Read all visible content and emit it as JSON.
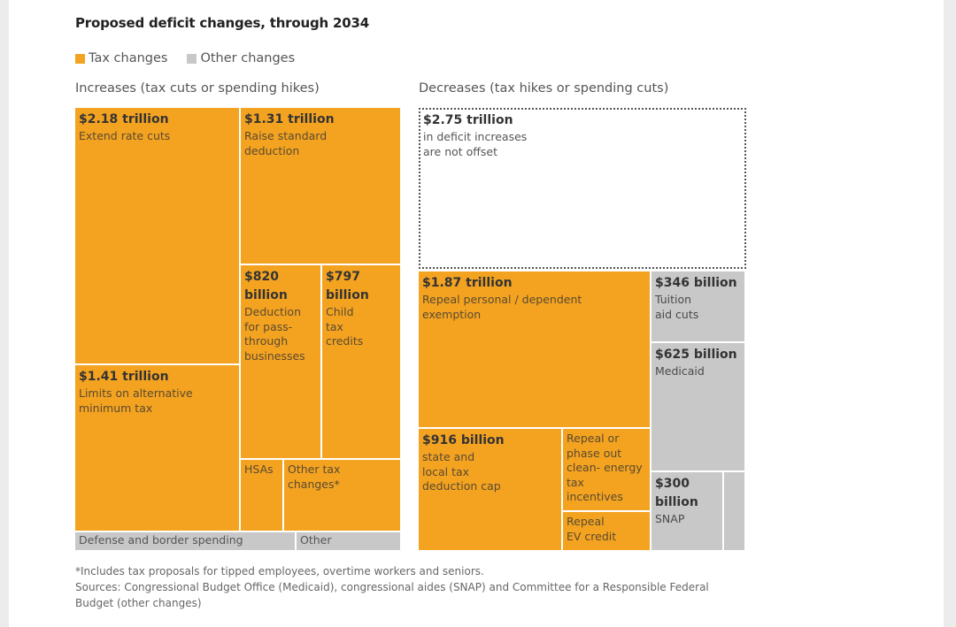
{
  "title": "Proposed deficit changes, through 2034",
  "legend": [
    {
      "label": "Tax changes",
      "color": "#f4a321"
    },
    {
      "label": "Other changes",
      "color": "#c8c8c8"
    }
  ],
  "sections": {
    "increases": "Increases (tax cuts or spending hikes)",
    "decreases": "Decreases (tax hikes or spending cuts)"
  },
  "chart_data": {
    "type": "treemap",
    "units": "USD",
    "groups": [
      {
        "name": "Increases (tax cuts or spending hikes)",
        "items": [
          {
            "value": "$2.18 trillion",
            "amount_billion": 2180,
            "label": "Extend rate cuts",
            "category": "Tax changes"
          },
          {
            "value": "$1.31 trillion",
            "amount_billion": 1310,
            "label": "Raise standard deduction",
            "category": "Tax changes"
          },
          {
            "value": "$820 billion",
            "amount_billion": 820,
            "label": "Deduction for pass-through businesses",
            "category": "Tax changes"
          },
          {
            "value": "$797 billion",
            "amount_billion": 797,
            "label": "Child tax credits",
            "category": "Tax changes"
          },
          {
            "value": "$1.41 trillion",
            "amount_billion": 1410,
            "label": "Limits on alternative minimum tax",
            "category": "Tax changes"
          },
          {
            "value": "",
            "label": "HSAs",
            "category": "Tax changes"
          },
          {
            "value": "",
            "label": "Other tax changes*",
            "category": "Tax changes"
          },
          {
            "value": "",
            "label": "Defense and border spending",
            "category": "Other changes"
          },
          {
            "value": "",
            "label": "Other",
            "category": "Other changes"
          }
        ]
      },
      {
        "name": "Decreases (tax hikes or spending cuts)",
        "items": [
          {
            "value": "$2.75 trillion",
            "amount_billion": 2750,
            "label": "in deficit increases are not offset",
            "category": "Not offset"
          },
          {
            "value": "$1.87 trillion",
            "amount_billion": 1870,
            "label": "Repeal personal / dependent exemption",
            "category": "Tax changes"
          },
          {
            "value": "$916 billion",
            "amount_billion": 916,
            "label": "state and local tax deduction cap",
            "category": "Tax changes"
          },
          {
            "value": "",
            "label": "Repeal or phase out clean- energy tax incentives",
            "category": "Tax changes"
          },
          {
            "value": "",
            "label": "Repeal EV credit",
            "category": "Tax changes"
          },
          {
            "value": "$346 billion",
            "amount_billion": 346,
            "label": "Tuition aid cuts",
            "category": "Other changes"
          },
          {
            "value": "$625 billion",
            "amount_billion": 625,
            "label": "Medicaid",
            "category": "Other changes"
          },
          {
            "value": "$300 billion",
            "amount_billion": 300,
            "label": "SNAP",
            "category": "Other changes"
          },
          {
            "value": "",
            "label": "",
            "category": "Other changes"
          }
        ]
      }
    ]
  },
  "tiles": {
    "extend_rate_cuts": {
      "value": "$2.18 trillion",
      "label": "Extend rate cuts"
    },
    "standard_deduction": {
      "value": "$1.31 trillion",
      "label": "Raise standard\ndeduction"
    },
    "pass_through": {
      "value": "$820\nbillion",
      "label": "Deduction\nfor pass-\nthrough\nbusinesses"
    },
    "child_tax": {
      "value": "$797\nbillion",
      "label": "Child\ntax\ncredits"
    },
    "amt": {
      "value": "$1.41 trillion",
      "label": "Limits on alternative\nminimum tax"
    },
    "hsas": {
      "label": "HSAs"
    },
    "other_tax": {
      "label": "Other tax\nchanges*"
    },
    "defense": {
      "label": "Defense and border spending"
    },
    "other": {
      "label": "Other"
    },
    "not_offset": {
      "value": "$2.75 trillion",
      "label": "in deficit increases\nare not offset"
    },
    "personal_exemption": {
      "value": "$1.87 trillion",
      "label": "Repeal personal / dependent\nexemption"
    },
    "salt": {
      "value": "$916 billion",
      "label": "state and\nlocal tax\ndeduction cap"
    },
    "clean_energy": {
      "label": "Repeal or\nphase out\nclean- energy\ntax\nincentives"
    },
    "ev_credit": {
      "label": "Repeal\nEV credit"
    },
    "tuition": {
      "value": "$346 billion",
      "label": "Tuition\naid cuts"
    },
    "medicaid": {
      "value": "$625 billion",
      "label": "Medicaid"
    },
    "snap": {
      "value": "$300\nbillion",
      "label": "SNAP"
    }
  },
  "footnotes": {
    "note": "*Includes tax proposals for tipped employees, overtime workers and seniors.",
    "sources": "Sources: Congressional Budget Office (Medicaid), congressional aides (SNAP) and Committee for a Responsible Federal Budget (other changes)"
  }
}
